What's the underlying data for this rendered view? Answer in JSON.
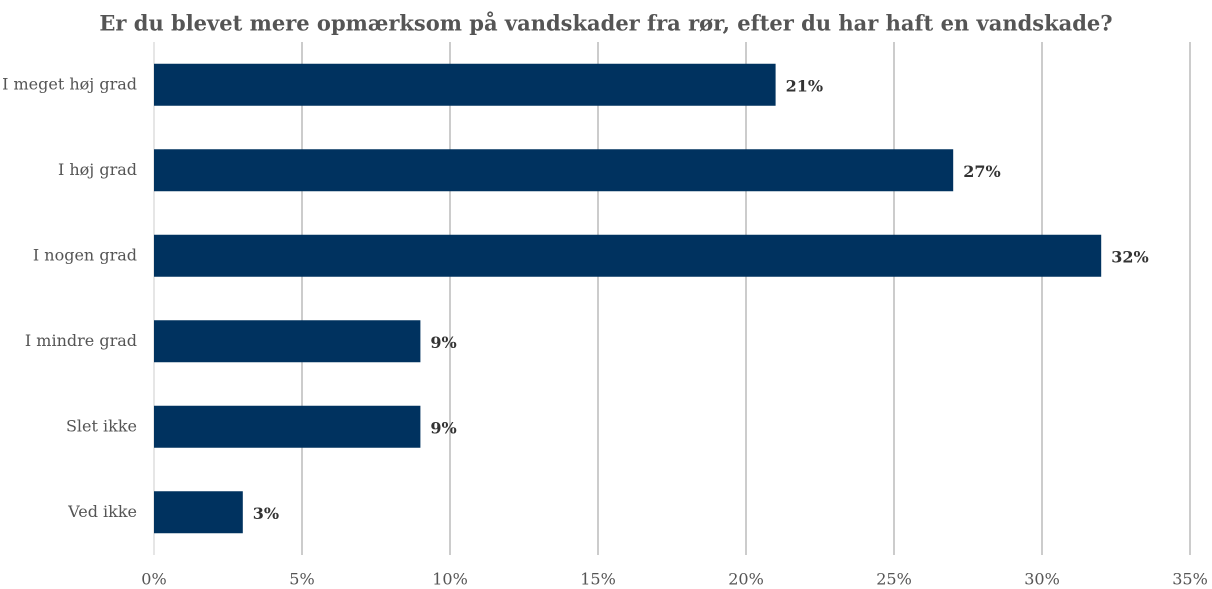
{
  "chart_data": {
    "type": "bar",
    "orientation": "horizontal",
    "title": "Er du blevet mere opmærksom på vandskader fra rør, efter du har haft en vandskade?",
    "categories": [
      "I meget høj grad",
      "I høj grad",
      "I nogen grad",
      "I mindre grad",
      "Slet ikke",
      "Ved ikke"
    ],
    "values": [
      21,
      27,
      32,
      9,
      9,
      3
    ],
    "value_labels": [
      "21%",
      "27%",
      "32%",
      "9%",
      "9%",
      "3%"
    ],
    "color": "#00325f",
    "xlim": [
      0,
      35
    ],
    "xticks": [
      {
        "value": 0,
        "label": "0%"
      },
      {
        "value": 5,
        "label": "5%"
      },
      {
        "value": 10,
        "label": "10%"
      },
      {
        "value": 15,
        "label": "15%"
      },
      {
        "value": 20,
        "label": "20%"
      },
      {
        "value": 25,
        "label": "25%"
      },
      {
        "value": 30,
        "label": "30%"
      },
      {
        "value": 35,
        "label": "35%"
      }
    ],
    "grid": true
  }
}
